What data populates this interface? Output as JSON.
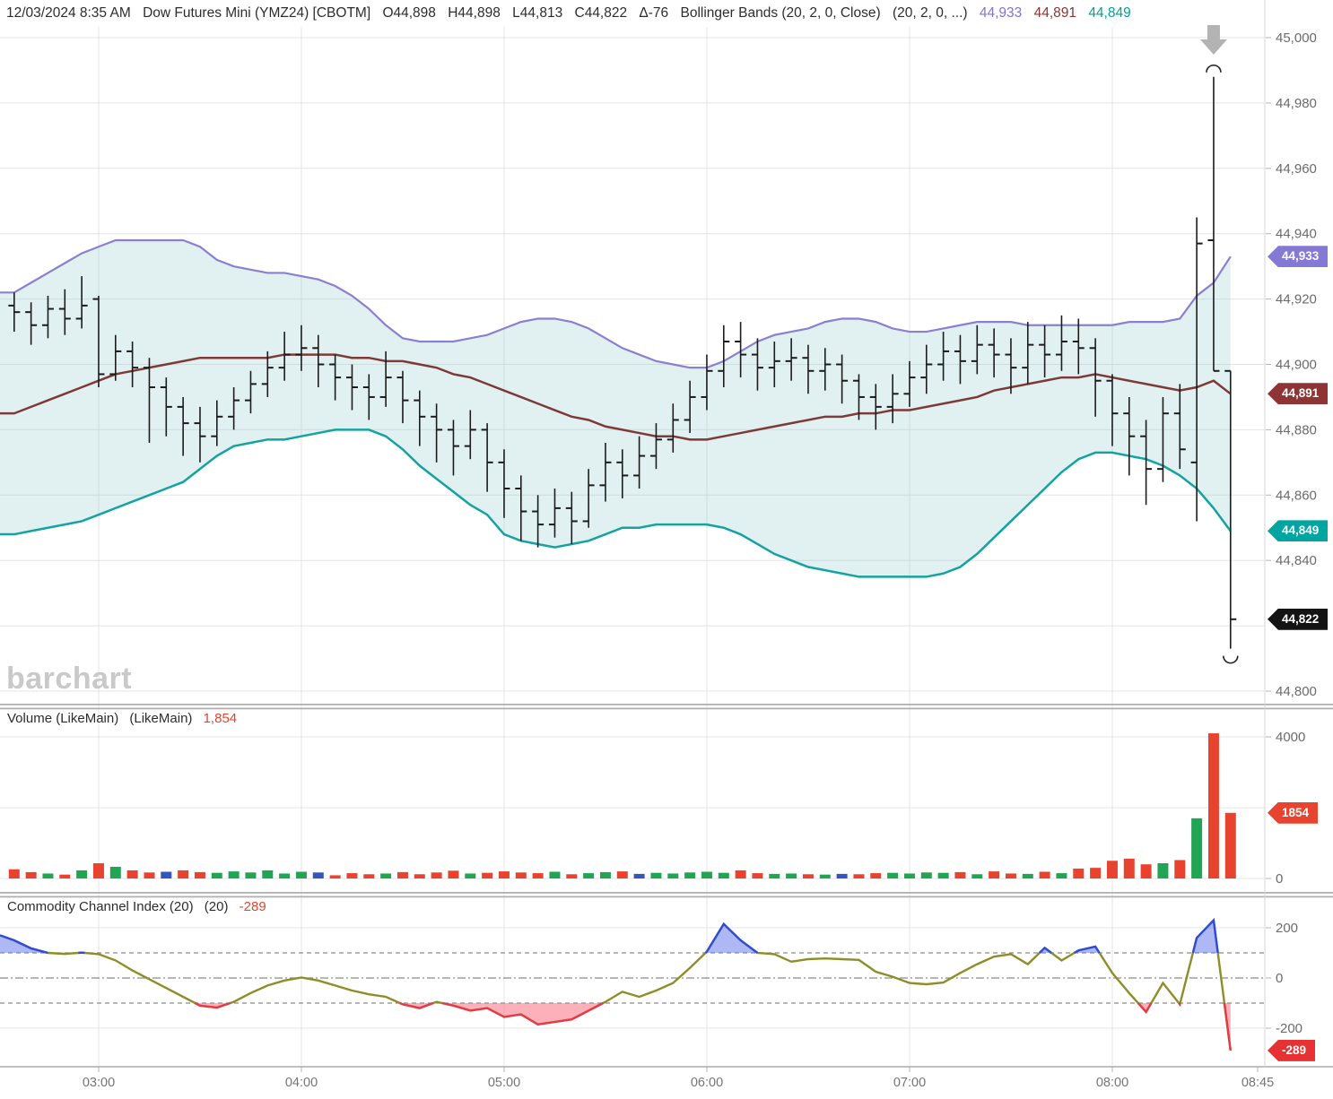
{
  "header": {
    "datetime": "12/03/2024 8:35 AM",
    "symbol": "Dow Futures Mini (YMZ24) [CBOTM]",
    "open": "O44,898",
    "high": "H44,898",
    "low": "L44,813",
    "close": "C44,822",
    "change": "Δ-76",
    "study": "Bollinger Bands (20, 2, 0, Close)",
    "study2": "(20, 2, 0, ...)",
    "bb_upper": "44,933",
    "bb_middle": "44,891",
    "bb_lower": "44,849"
  },
  "watermark": "barchart",
  "panes": {
    "volume": {
      "title": "Volume (LikeMain)",
      "title2": "(LikeMain)",
      "value": "1,854"
    },
    "cci": {
      "title": "Commodity Channel Index (20)",
      "title2": "(20)",
      "value": "-289"
    }
  },
  "axes": {
    "price_ticks": [
      {
        "label": "45,000",
        "value": 45000
      },
      {
        "label": "44,980",
        "value": 44980
      },
      {
        "label": "44,960",
        "value": 44960
      },
      {
        "label": "44,940",
        "value": 44940
      },
      {
        "label": "44,920",
        "value": 44920
      },
      {
        "label": "44,900",
        "value": 44900
      },
      {
        "label": "44,880",
        "value": 44880
      },
      {
        "label": "44,860",
        "value": 44860
      },
      {
        "label": "44,840",
        "value": 44840
      },
      {
        "label": "44,800",
        "value": 44800
      }
    ],
    "volume_ticks": [
      {
        "label": "4000",
        "value": 4000
      },
      {
        "label": "0",
        "value": 0
      }
    ],
    "cci_ticks": [
      {
        "label": "200",
        "value": 200
      },
      {
        "label": "0",
        "value": 0
      },
      {
        "label": "-200",
        "value": -200
      }
    ],
    "time_labels": [
      "03:00",
      "04:00",
      "05:00",
      "06:00",
      "07:00",
      "08:00"
    ],
    "time_end_label": "08:45"
  },
  "badges": [
    {
      "text": "44,933",
      "value": 44933,
      "pane": "price",
      "color": "#8579d6"
    },
    {
      "text": "44,891",
      "value": 44891,
      "pane": "price",
      "color": "#8e3434"
    },
    {
      "text": "44,849",
      "value": 44849,
      "pane": "price",
      "color": "#00a5a2"
    },
    {
      "text": "44,822",
      "value": 44822,
      "pane": "price",
      "color": "#141414"
    },
    {
      "text": "1854",
      "value": 1854,
      "pane": "volume",
      "color": "#e8432e"
    },
    {
      "text": "-289",
      "value": -289,
      "pane": "cci",
      "color": "#e63232"
    }
  ],
  "colors": {
    "bb_upper": "#8a80d0",
    "bb_middle": "#7e3939",
    "bb_lower": "#14a3a0",
    "bb_fill": "rgba(148,205,209,0.28)",
    "ohlc_bar": "#1c1c1c",
    "vol_up": "#21a453",
    "vol_down": "#e8432e",
    "vol_neutral": "#3355c0",
    "cci_line": "#8e8e28",
    "cci_pos_line": "#2f4cd8",
    "cci_pos_fill": "rgba(92,114,235,0.50)",
    "cci_neg_line": "#e63946",
    "cci_neg_fill": "rgba(249,112,130,0.55)",
    "grid": "#e4e4e4",
    "grid_dashed": "#8a8a8a",
    "axis_text": "#6b6b6b",
    "time_text": "#757575",
    "divider": "#b0b0b0",
    "arrow": "#b3b3b3",
    "watermark": "#c9c9c9"
  },
  "chart_data": [
    {
      "type": "ohlc-bars",
      "title": "Dow Futures Mini (YMZ24) 5-minute bars with Bollinger Bands (20,2)",
      "interval_minutes": 5,
      "ylim": [
        44800,
        45000
      ],
      "times": [
        "02:35",
        "02:40",
        "02:45",
        "02:50",
        "02:55",
        "03:00",
        "03:05",
        "03:10",
        "03:15",
        "03:20",
        "03:25",
        "03:30",
        "03:35",
        "03:40",
        "03:45",
        "03:50",
        "03:55",
        "04:00",
        "04:05",
        "04:10",
        "04:15",
        "04:20",
        "04:25",
        "04:30",
        "04:35",
        "04:40",
        "04:45",
        "04:50",
        "04:55",
        "05:00",
        "05:05",
        "05:10",
        "05:15",
        "05:20",
        "05:25",
        "05:30",
        "05:35",
        "05:40",
        "05:45",
        "05:50",
        "05:55",
        "06:00",
        "06:05",
        "06:10",
        "06:15",
        "06:20",
        "06:25",
        "06:30",
        "06:35",
        "06:40",
        "06:45",
        "06:50",
        "06:55",
        "07:00",
        "07:05",
        "07:10",
        "07:15",
        "07:20",
        "07:25",
        "07:30",
        "07:35",
        "07:40",
        "07:45",
        "07:50",
        "07:55",
        "08:00",
        "08:05",
        "08:10",
        "08:15",
        "08:20",
        "08:25",
        "08:30",
        "08:35"
      ],
      "open": [
        44918,
        44916,
        44912,
        44917,
        44914,
        44920,
        44897,
        44904,
        44899,
        44893,
        44887,
        44882,
        44878,
        44884,
        44889,
        44894,
        44899,
        44903,
        44905,
        44900,
        44896,
        44893,
        44890,
        44896,
        44889,
        44884,
        44880,
        44875,
        44880,
        44870,
        44862,
        44855,
        44851,
        44856,
        44852,
        44863,
        44870,
        44866,
        44872,
        44877,
        44883,
        44890,
        44898,
        44907,
        44903,
        44899,
        44901,
        44902,
        44898,
        44900,
        44895,
        44890,
        44887,
        44891,
        44896,
        44900,
        44904,
        44901,
        44906,
        44903,
        44899,
        44906,
        44903,
        44907,
        44905,
        44895,
        44885,
        44878,
        44868,
        44885,
        44870,
        44938,
        44898
      ],
      "high": [
        44922,
        44919,
        44921,
        44923,
        44927,
        44921,
        44909,
        44907,
        44902,
        44896,
        44890,
        44887,
        44889,
        44893,
        44898,
        44904,
        44910,
        44912,
        44909,
        44903,
        44900,
        44897,
        44904,
        44898,
        44892,
        44888,
        44883,
        44886,
        44882,
        44874,
        44866,
        44860,
        44862,
        44861,
        44868,
        44876,
        44874,
        44878,
        44882,
        44888,
        44895,
        44903,
        44912,
        44913,
        44908,
        44907,
        44908,
        44906,
        44905,
        44903,
        44897,
        44894,
        44897,
        44901,
        44906,
        44910,
        44909,
        44912,
        44911,
        44908,
        44913,
        44912,
        44915,
        44914,
        44908,
        44897,
        44890,
        44883,
        44890,
        44894,
        44945,
        44988,
        44898
      ],
      "low": [
        44910,
        44906,
        44908,
        44909,
        44911,
        44893,
        44895,
        44893,
        44876,
        44878,
        44872,
        44870,
        44875,
        44880,
        44885,
        44890,
        44895,
        44898,
        44893,
        44889,
        44886,
        44883,
        44887,
        44882,
        44875,
        44870,
        44866,
        44871,
        44861,
        44853,
        44846,
        44844,
        44847,
        44845,
        44850,
        44858,
        44859,
        44862,
        44868,
        44873,
        44879,
        44886,
        44893,
        44896,
        44892,
        44893,
        44895,
        44891,
        44892,
        44888,
        44883,
        44880,
        44882,
        44887,
        44891,
        44895,
        44894,
        44897,
        44896,
        44891,
        44894,
        44896,
        44898,
        44897,
        44884,
        44875,
        44866,
        44857,
        44864,
        44868,
        44852,
        44898,
        44813
      ],
      "close": [
        44916,
        44912,
        44917,
        44914,
        44918,
        44897,
        44904,
        44899,
        44893,
        44887,
        44882,
        44878,
        44884,
        44889,
        44894,
        44899,
        44903,
        44905,
        44900,
        44896,
        44893,
        44890,
        44896,
        44889,
        44884,
        44880,
        44875,
        44880,
        44870,
        44862,
        44855,
        44851,
        44856,
        44852,
        44863,
        44870,
        44866,
        44872,
        44877,
        44883,
        44890,
        44898,
        44907,
        44903,
        44899,
        44901,
        44902,
        44898,
        44900,
        44895,
        44890,
        44887,
        44891,
        44896,
        44900,
        44904,
        44901,
        44906,
        44903,
        44899,
        44906,
        44903,
        44907,
        44905,
        44895,
        44885,
        44878,
        44868,
        44885,
        44874,
        44937,
        44898,
        44822
      ],
      "overlays": {
        "bb_upper": [
          44922,
          44925,
          44928,
          44931,
          44934,
          44936,
          44938,
          44938,
          44938,
          44938,
          44938,
          44936,
          44932,
          44930,
          44929,
          44928,
          44928,
          44927,
          44926,
          44924,
          44921,
          44917,
          44912,
          44908,
          44907,
          44907,
          44907,
          44908,
          44909,
          44911,
          44913,
          44914,
          44914,
          44913,
          44911,
          44908,
          44905,
          44903,
          44901,
          44900,
          44899,
          44899,
          44901,
          44904,
          44907,
          44909,
          44910,
          44911,
          44913,
          44914,
          44914,
          44913,
          44911,
          44910,
          44910,
          44911,
          44912,
          44913,
          44913,
          44913,
          44912,
          44912,
          44912,
          44912,
          44912,
          44912,
          44913,
          44913,
          44913,
          44914,
          44921,
          44925,
          44933
        ],
        "bb_middle": [
          44885,
          44887,
          44889,
          44891,
          44893,
          44895,
          44897,
          44898,
          44899,
          44900,
          44901,
          44902,
          44902,
          44902,
          44902,
          44902,
          44903,
          44903,
          44903,
          44903,
          44902,
          44902,
          44901,
          44901,
          44900,
          44899,
          44897,
          44896,
          44894,
          44892,
          44890,
          44888,
          44886,
          44884,
          44883,
          44881,
          44880,
          44879,
          44878,
          44878,
          44877,
          44877,
          44878,
          44879,
          44880,
          44881,
          44882,
          44883,
          44884,
          44884,
          44885,
          44885,
          44886,
          44886,
          44887,
          44888,
          44889,
          44890,
          44892,
          44893,
          44894,
          44895,
          44896,
          44896,
          44897,
          44896,
          44895,
          44894,
          44893,
          44892,
          44893,
          44895,
          44891
        ],
        "bb_lower": [
          44848,
          44849,
          44850,
          44851,
          44852,
          44854,
          44856,
          44858,
          44860,
          44862,
          44864,
          44868,
          44872,
          44875,
          44876,
          44877,
          44877,
          44878,
          44879,
          44880,
          44880,
          44880,
          44878,
          44874,
          44869,
          44865,
          44861,
          44857,
          44854,
          44848,
          44846,
          44845,
          44844,
          44845,
          44846,
          44848,
          44850,
          44850,
          44851,
          44851,
          44851,
          44851,
          44850,
          44848,
          44845,
          44842,
          44840,
          44838,
          44837,
          44836,
          44835,
          44835,
          44835,
          44835,
          44835,
          44836,
          44838,
          44842,
          44847,
          44852,
          44857,
          44862,
          44867,
          44871,
          44873,
          44873,
          44872,
          44871,
          44869,
          44866,
          44862,
          44856,
          44849
        ]
      },
      "markers": {
        "arrow_down_bar_index": 71,
        "high_arc_bar_index": 71,
        "low_arc_bar_index": 72
      }
    },
    {
      "type": "bar",
      "title": "Volume (LikeMain)",
      "ylim": [
        0,
        4000
      ],
      "values": [
        260,
        180,
        140,
        110,
        230,
        430,
        330,
        230,
        170,
        190,
        230,
        180,
        160,
        200,
        170,
        230,
        140,
        190,
        170,
        90,
        150,
        120,
        140,
        180,
        120,
        170,
        220,
        140,
        160,
        200,
        170,
        150,
        190,
        120,
        150,
        180,
        200,
        130,
        160,
        140,
        170,
        190,
        160,
        230,
        150,
        130,
        140,
        120,
        110,
        130,
        120,
        150,
        160,
        140,
        170,
        160,
        180,
        120,
        200,
        140,
        130,
        190,
        150,
        280,
        300,
        500,
        560,
        400,
        430,
        520,
        1700,
        4100,
        1854
      ],
      "bar_colors": [
        "d",
        "d",
        "u",
        "d",
        "u",
        "d",
        "u",
        "d",
        "d",
        "n",
        "d",
        "d",
        "u",
        "u",
        "u",
        "u",
        "u",
        "u",
        "n",
        "d",
        "d",
        "d",
        "u",
        "d",
        "d",
        "d",
        "d",
        "u",
        "d",
        "d",
        "d",
        "d",
        "u",
        "d",
        "u",
        "u",
        "d",
        "n",
        "u",
        "u",
        "u",
        "u",
        "u",
        "d",
        "d",
        "u",
        "u",
        "d",
        "u",
        "n",
        "d",
        "d",
        "u",
        "u",
        "u",
        "u",
        "d",
        "u",
        "d",
        "d",
        "u",
        "d",
        "u",
        "d",
        "d",
        "d",
        "d",
        "d",
        "u",
        "d",
        "u",
        "d",
        "d"
      ],
      "last_value": 1854
    },
    {
      "type": "line",
      "title": "Commodity Channel Index (20)",
      "thresholds": {
        "upper": 100,
        "lower": -100,
        "zero": 0
      },
      "edge_value": 170,
      "values": [
        150,
        118,
        100,
        96,
        101,
        95,
        70,
        30,
        -5,
        -40,
        -75,
        -110,
        -118,
        -95,
        -60,
        -30,
        -10,
        2,
        -10,
        -30,
        -50,
        -65,
        -75,
        -105,
        -120,
        -95,
        -110,
        -130,
        -120,
        -155,
        -145,
        -185,
        -175,
        -165,
        -130,
        -95,
        -55,
        -75,
        -50,
        -20,
        40,
        105,
        215,
        150,
        100,
        95,
        65,
        75,
        78,
        75,
        72,
        25,
        5,
        -20,
        -25,
        -18,
        20,
        55,
        85,
        95,
        55,
        120,
        70,
        110,
        125,
        20,
        -60,
        -135,
        -20,
        -105,
        160,
        230,
        -289
      ],
      "last_value": -289
    }
  ]
}
